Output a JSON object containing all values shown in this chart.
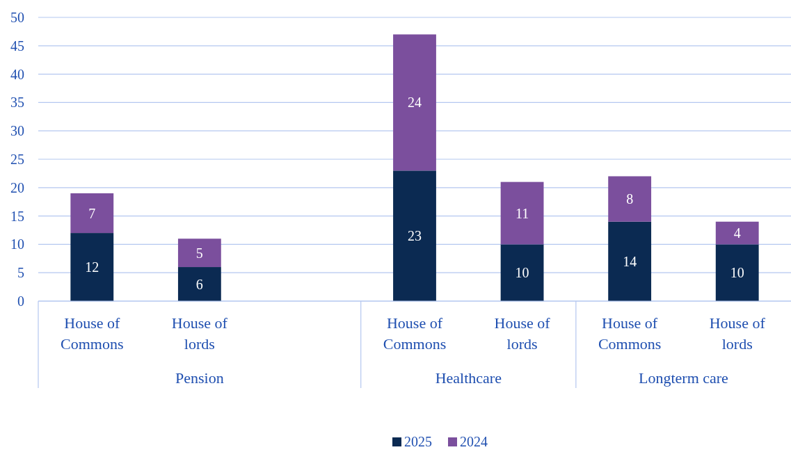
{
  "chart_data": {
    "type": "bar",
    "stacked": true,
    "categories": [
      "House of Commons",
      "House of lords",
      null,
      "House of Commons",
      "House of lords",
      "House of Commons",
      "House of lords"
    ],
    "series": [
      {
        "name": "2025",
        "color": "#0b2a52",
        "values": [
          12,
          6,
          null,
          23,
          10,
          14,
          10
        ]
      },
      {
        "name": "2024",
        "color": "#7b4f9d",
        "values": [
          7,
          5,
          null,
          24,
          11,
          8,
          4
        ]
      }
    ],
    "annotations": [
      "Pension",
      "Healthcare",
      "Longterm care"
    ],
    "ylim": [
      0,
      50
    ],
    "yticks": [
      0,
      5,
      10,
      15,
      20,
      25,
      30,
      35,
      40,
      45,
      50
    ],
    "grid": "y",
    "legend": "bottom",
    "data_labels": true
  }
}
